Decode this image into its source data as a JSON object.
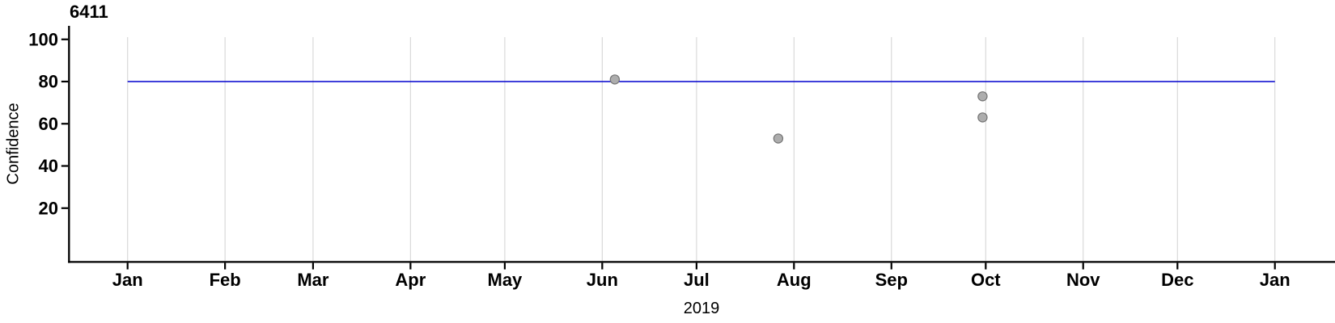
{
  "chart_data": {
    "type": "scatter",
    "title": "6411",
    "xlabel": "2019",
    "ylabel": "Confidence",
    "x_axis": {
      "kind": "date",
      "start": "2019-01-01",
      "end": "2020-01-01",
      "tick_labels": [
        "Jan",
        "Feb",
        "Mar",
        "Apr",
        "May",
        "Jun",
        "Jul",
        "Aug",
        "Sep",
        "Oct",
        "Nov",
        "Dec",
        "Jan"
      ]
    },
    "y_axis": {
      "ticks": [
        100,
        80,
        60,
        40,
        20
      ]
    },
    "ylim": [
      -5,
      101
    ],
    "grid": "vertical-month-gridlines-only",
    "legend": "none",
    "reference_line": {
      "type": "hline",
      "value": 80,
      "x_start": "2019-01-01",
      "x_end": "2020-01-01",
      "color": "#0101cd"
    },
    "points": [
      {
        "date": "2019-06-05",
        "value": 81
      },
      {
        "date": "2019-07-27",
        "value": 53
      },
      {
        "date": "2019-09-30",
        "value": 73
      },
      {
        "date": "2019-09-30",
        "value": 63
      }
    ],
    "point_style": {
      "fill": "#adadad",
      "stroke": "#757575",
      "radius": 5.6
    },
    "colors": {
      "axis": "#000000",
      "gridline": "#d6d6d6",
      "text": "#000000",
      "background": "#ffffff"
    }
  }
}
